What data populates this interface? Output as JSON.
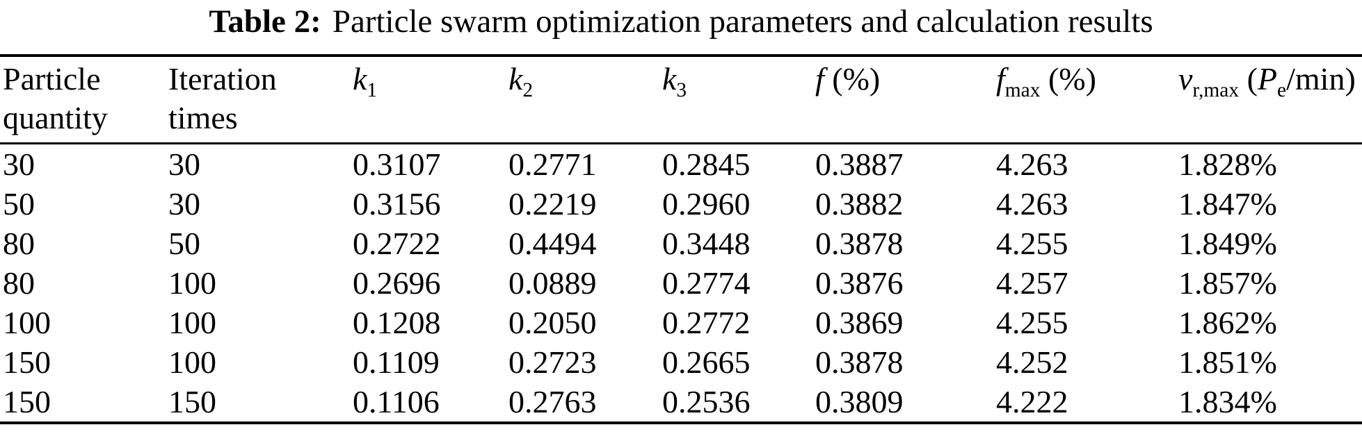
{
  "title": {
    "label": "Table 2:",
    "text": "Particle swarm optimization parameters and calculation results"
  },
  "colors": {
    "text": "#000000",
    "background": "#ffffff",
    "rule": "#000000"
  },
  "table": {
    "columns": [
      {
        "id": "particle-quantity",
        "text": "Particle quantity"
      },
      {
        "id": "iteration-times",
        "text": "Iteration times"
      },
      {
        "id": "k1",
        "var": "k",
        "sub": "1"
      },
      {
        "id": "k2",
        "var": "k",
        "sub": "2"
      },
      {
        "id": "k3",
        "var": "k",
        "sub": "3"
      },
      {
        "id": "f",
        "var": "f",
        "unit": " (%)"
      },
      {
        "id": "f-max",
        "var": "f",
        "sub": "max",
        "unit": " (%)"
      },
      {
        "id": "v-r-max",
        "var": "v",
        "sub": "r,max",
        "unit_open": " (",
        "unit_var": "P",
        "unit_sub": "e",
        "unit_close": "/min)"
      }
    ],
    "rows": [
      [
        "30",
        "30",
        "0.3107",
        "0.2771",
        "0.2845",
        "0.3887",
        "4.263",
        "1.828%"
      ],
      [
        "50",
        "30",
        "0.3156",
        "0.2219",
        "0.2960",
        "0.3882",
        "4.263",
        "1.847%"
      ],
      [
        "80",
        "50",
        "0.2722",
        "0.4494",
        "0.3448",
        "0.3878",
        "4.255",
        "1.849%"
      ],
      [
        "80",
        "100",
        "0.2696",
        "0.0889",
        "0.2774",
        "0.3876",
        "4.257",
        "1.857%"
      ],
      [
        "100",
        "100",
        "0.1208",
        "0.2050",
        "0.2772",
        "0.3869",
        "4.255",
        "1.862%"
      ],
      [
        "150",
        "100",
        "0.1109",
        "0.2723",
        "0.2665",
        "0.3878",
        "4.252",
        "1.851%"
      ],
      [
        "150",
        "150",
        "0.1106",
        "0.2763",
        "0.2536",
        "0.3809",
        "4.222",
        "1.834%"
      ]
    ]
  }
}
